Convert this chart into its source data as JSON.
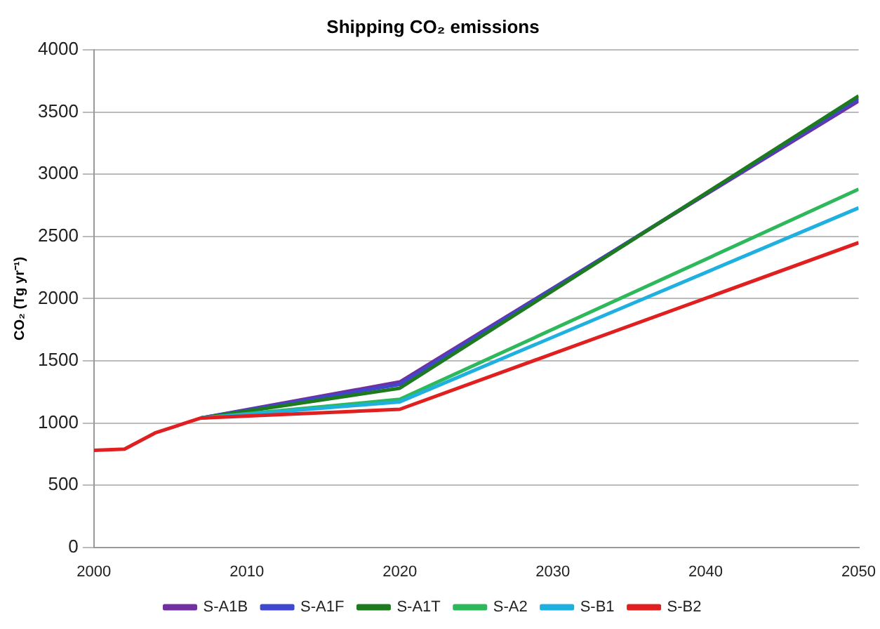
{
  "chart_data": {
    "type": "line",
    "title": "Shipping CO₂ emissions",
    "ylabel": "CO₂ (Tg yr⁻¹)",
    "x": [
      2000,
      2002,
      2004,
      2007,
      2020,
      2050
    ],
    "series": [
      {
        "name": "S-A1B",
        "color": "#7030a0",
        "values": [
          null,
          null,
          null,
          1040,
          1330,
          3590
        ]
      },
      {
        "name": "S-A1F",
        "color": "#3f48cc",
        "values": [
          null,
          null,
          null,
          1040,
          1310,
          3610
        ]
      },
      {
        "name": "S-A1T",
        "color": "#1e7a1e",
        "values": [
          null,
          null,
          null,
          1040,
          1280,
          3630
        ]
      },
      {
        "name": "S-A2",
        "color": "#2eb85c",
        "values": [
          null,
          null,
          null,
          1040,
          1190,
          2880
        ]
      },
      {
        "name": "S-B1",
        "color": "#20b0e0",
        "values": [
          null,
          null,
          null,
          1040,
          1170,
          2730
        ]
      },
      {
        "name": "S-B2",
        "color": "#e02020",
        "values": [
          780,
          790,
          920,
          1040,
          1110,
          2450
        ]
      }
    ],
    "xlim": [
      2000,
      2050
    ],
    "xticks": [
      2000,
      2010,
      2020,
      2030,
      2040,
      2050
    ],
    "ylim": [
      0,
      4000
    ],
    "yticks": [
      0,
      500,
      1000,
      1500,
      2000,
      2500,
      3000,
      3500,
      4000
    ],
    "grid": "y",
    "legend": "bottom",
    "marker": "none",
    "line_style": "solid"
  }
}
